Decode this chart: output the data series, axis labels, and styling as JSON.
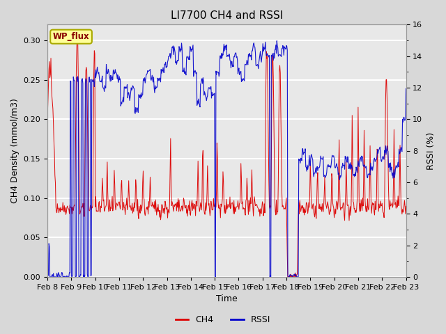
{
  "title": "LI7700 CH4 and RSSI",
  "xlabel": "Time",
  "ylabel_left": "CH4 Density (mmol/m3)",
  "ylabel_right": "RSSI (%)",
  "site_label": "WP_flux",
  "ylim_left": [
    0.0,
    0.32
  ],
  "ylim_right": [
    0,
    16
  ],
  "yticks_left": [
    0.0,
    0.05,
    0.1,
    0.15,
    0.2,
    0.25,
    0.3
  ],
  "yticks_right": [
    0,
    2,
    4,
    6,
    8,
    10,
    12,
    14,
    16
  ],
  "xtick_labels": [
    "Feb 8",
    "Feb 9",
    "Feb 10",
    "Feb 11",
    "Feb 12",
    "Feb 13",
    "Feb 14",
    "Feb 15",
    "Feb 16",
    "Feb 17",
    "Feb 18",
    "Feb 19",
    "Feb 20",
    "Feb 21",
    "Feb 22",
    "Feb 23"
  ],
  "ch4_color": "#dd0000",
  "rssi_color": "#0000cc",
  "background_color": "#d8d8d8",
  "plot_bg_color": "#e8e8e8",
  "grid_color": "#ffffff",
  "site_label_bg": "#ffff99",
  "site_label_border": "#aaaa00",
  "title_fontsize": 11,
  "axis_label_fontsize": 9,
  "tick_fontsize": 8,
  "legend_fontsize": 9
}
